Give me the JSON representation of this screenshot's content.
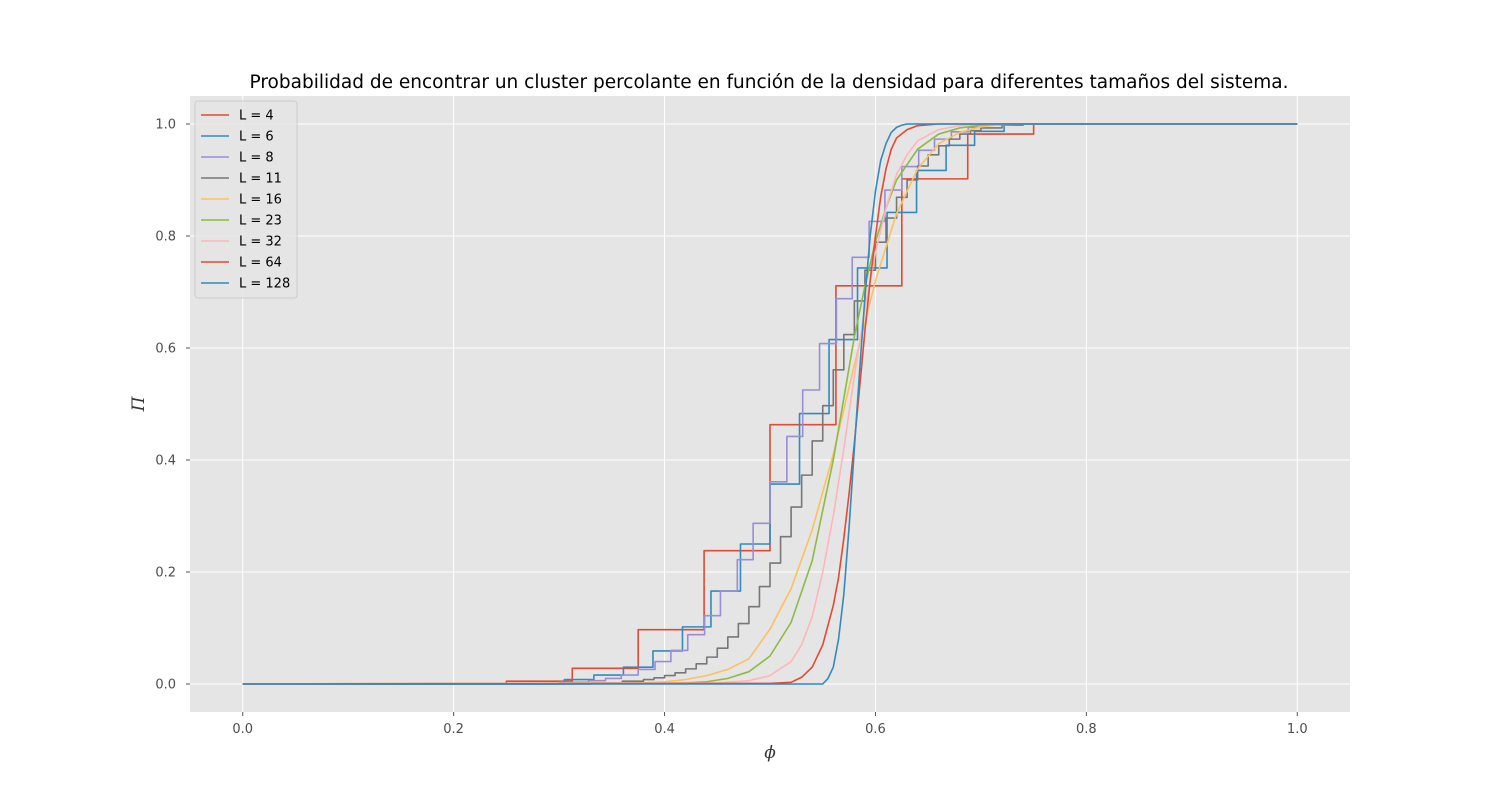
{
  "chart_data": {
    "type": "line",
    "title": "Probabilidad de encontrar un cluster percolante en función de la densidad para diferentes tamaños del sistema.",
    "xlabel": "ϕ",
    "ylabel": "Π",
    "xlim": [
      -0.05,
      1.05
    ],
    "ylim": [
      -0.05,
      1.05
    ],
    "xticks": [
      0.0,
      0.2,
      0.4,
      0.6,
      0.8,
      1.0
    ],
    "yticks": [
      0.0,
      0.2,
      0.4,
      0.6,
      0.8,
      1.0
    ],
    "grid": true,
    "legend_position": "upper-left",
    "series": [
      {
        "name": "L = 4",
        "color": "#E24A33",
        "step": true,
        "x": [
          0.0,
          0.25,
          0.3125,
          0.375,
          0.4375,
          0.5,
          0.5625,
          0.625,
          0.6875,
          0.75,
          1.0
        ],
        "y": [
          0.0,
          0.005,
          0.028,
          0.097,
          0.238,
          0.463,
          0.711,
          0.902,
          0.982,
          1.0,
          1.0
        ]
      },
      {
        "name": "L = 6",
        "color": "#348ABD",
        "step": true,
        "x": [
          0.0,
          0.305,
          0.333,
          0.361,
          0.389,
          0.417,
          0.444,
          0.472,
          0.5,
          0.528,
          0.556,
          0.583,
          0.611,
          0.639,
          0.667,
          0.694,
          0.722,
          1.0
        ],
        "y": [
          0.0,
          0.008,
          0.016,
          0.03,
          0.059,
          0.102,
          0.166,
          0.25,
          0.357,
          0.483,
          0.615,
          0.743,
          0.842,
          0.917,
          0.962,
          0.987,
          1.0,
          1.0
        ]
      },
      {
        "name": "L = 8",
        "color": "#988ED5",
        "step": true,
        "x": [
          0.0,
          0.3,
          0.328,
          0.344,
          0.359,
          0.375,
          0.391,
          0.406,
          0.422,
          0.438,
          0.453,
          0.469,
          0.484,
          0.5,
          0.516,
          0.531,
          0.547,
          0.563,
          0.578,
          0.594,
          0.609,
          0.625,
          0.641,
          0.656,
          0.672,
          0.688,
          0.703,
          0.719,
          0.735,
          1.0
        ],
        "y": [
          0.0,
          0.003,
          0.006,
          0.01,
          0.016,
          0.026,
          0.04,
          0.06,
          0.088,
          0.122,
          0.166,
          0.222,
          0.287,
          0.361,
          0.442,
          0.525,
          0.608,
          0.688,
          0.762,
          0.826,
          0.882,
          0.924,
          0.953,
          0.973,
          0.986,
          0.994,
          0.998,
          0.999,
          1.0,
          1.0
        ]
      },
      {
        "name": "L = 11",
        "color": "#777777",
        "step": true,
        "x": [
          0.0,
          0.33,
          0.36,
          0.38,
          0.39,
          0.4,
          0.41,
          0.42,
          0.43,
          0.44,
          0.45,
          0.46,
          0.47,
          0.48,
          0.49,
          0.5,
          0.51,
          0.52,
          0.53,
          0.54,
          0.55,
          0.56,
          0.57,
          0.58,
          0.59,
          0.6,
          0.61,
          0.62,
          0.63,
          0.64,
          0.65,
          0.66,
          0.67,
          0.68,
          0.69,
          0.7,
          0.72,
          0.74,
          1.0
        ],
        "y": [
          0.0,
          0.002,
          0.005,
          0.008,
          0.011,
          0.015,
          0.02,
          0.027,
          0.036,
          0.048,
          0.064,
          0.084,
          0.108,
          0.138,
          0.174,
          0.216,
          0.263,
          0.316,
          0.373,
          0.434,
          0.497,
          0.561,
          0.624,
          0.684,
          0.739,
          0.789,
          0.832,
          0.869,
          0.9,
          0.925,
          0.945,
          0.961,
          0.973,
          0.982,
          0.988,
          0.993,
          0.998,
          1.0,
          1.0
        ]
      },
      {
        "name": "L = 16",
        "color": "#FBC15E",
        "step": false,
        "x": [
          0.0,
          0.38,
          0.4,
          0.42,
          0.44,
          0.46,
          0.48,
          0.5,
          0.52,
          0.54,
          0.56,
          0.58,
          0.6,
          0.62,
          0.64,
          0.66,
          0.68,
          0.7,
          0.72,
          0.74,
          1.0
        ],
        "y": [
          0.0,
          0.002,
          0.004,
          0.008,
          0.015,
          0.026,
          0.045,
          0.098,
          0.17,
          0.275,
          0.41,
          0.57,
          0.72,
          0.84,
          0.92,
          0.965,
          0.985,
          0.995,
          0.999,
          1.0,
          1.0
        ]
      },
      {
        "name": "L = 23",
        "color": "#8EBA42",
        "step": false,
        "x": [
          0.0,
          0.42,
          0.44,
          0.46,
          0.48,
          0.5,
          0.52,
          0.54,
          0.56,
          0.57,
          0.58,
          0.59,
          0.6,
          0.61,
          0.62,
          0.64,
          0.66,
          0.68,
          0.7,
          0.72,
          1.0
        ],
        "y": [
          0.0,
          0.002,
          0.004,
          0.01,
          0.022,
          0.05,
          0.11,
          0.22,
          0.4,
          0.51,
          0.62,
          0.71,
          0.79,
          0.85,
          0.9,
          0.955,
          0.982,
          0.993,
          0.998,
          1.0,
          1.0
        ]
      },
      {
        "name": "L = 32",
        "color": "#FFB5B8",
        "step": false,
        "x": [
          0.0,
          0.45,
          0.48,
          0.5,
          0.52,
          0.53,
          0.54,
          0.55,
          0.56,
          0.57,
          0.58,
          0.59,
          0.6,
          0.61,
          0.62,
          0.63,
          0.64,
          0.66,
          0.68,
          0.7,
          1.0
        ],
        "y": [
          0.0,
          0.002,
          0.006,
          0.015,
          0.04,
          0.07,
          0.12,
          0.2,
          0.3,
          0.42,
          0.55,
          0.67,
          0.77,
          0.85,
          0.91,
          0.945,
          0.97,
          0.99,
          0.997,
          1.0,
          1.0
        ]
      },
      {
        "name": "L = 64",
        "color": "#E24A33",
        "step": false,
        "x": [
          0.0,
          0.5,
          0.52,
          0.53,
          0.54,
          0.55,
          0.56,
          0.565,
          0.57,
          0.575,
          0.58,
          0.585,
          0.59,
          0.595,
          0.6,
          0.605,
          0.61,
          0.615,
          0.62,
          0.63,
          0.64,
          0.66,
          1.0
        ],
        "y": [
          0.0,
          0.001,
          0.003,
          0.012,
          0.03,
          0.07,
          0.14,
          0.19,
          0.26,
          0.34,
          0.43,
          0.53,
          0.63,
          0.72,
          0.8,
          0.87,
          0.92,
          0.955,
          0.975,
          0.99,
          0.997,
          1.0,
          1.0
        ]
      },
      {
        "name": "L = 128",
        "color": "#348ABD",
        "step": false,
        "x": [
          0.0,
          0.55,
          0.555,
          0.56,
          0.565,
          0.57,
          0.575,
          0.58,
          0.585,
          0.59,
          0.595,
          0.6,
          0.605,
          0.61,
          0.615,
          0.62,
          0.625,
          0.63,
          1.0
        ],
        "y": [
          0.0,
          0.0,
          0.01,
          0.03,
          0.08,
          0.16,
          0.28,
          0.42,
          0.56,
          0.69,
          0.8,
          0.88,
          0.935,
          0.965,
          0.985,
          0.994,
          0.998,
          1.0,
          1.0
        ]
      }
    ]
  }
}
